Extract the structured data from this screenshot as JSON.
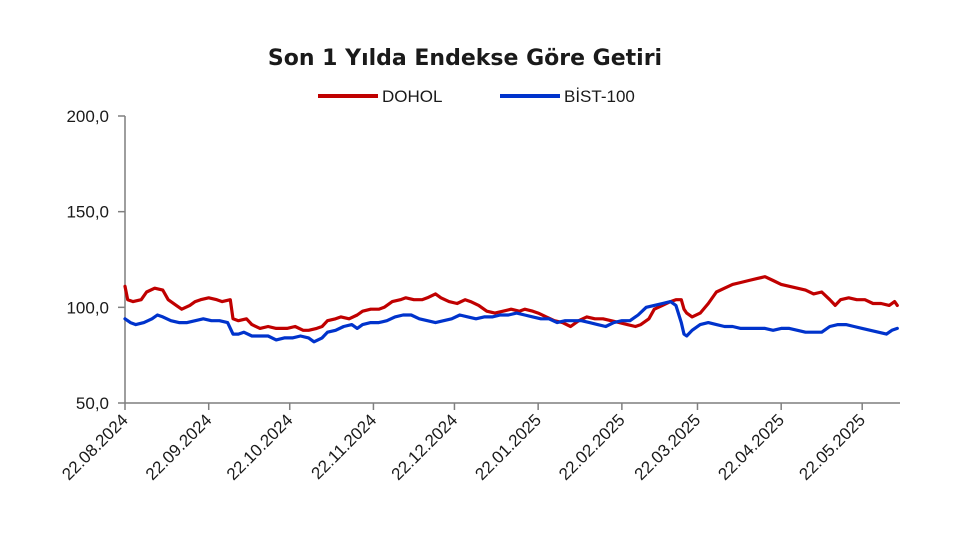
{
  "chart_data": {
    "type": "line",
    "title": "Son 1 Yılda Endekse Göre Getiri",
    "xlabel": "",
    "ylabel": "",
    "ylim": [
      50,
      200
    ],
    "y_ticks": [
      "200,0",
      "150,0",
      "100,0",
      "50,0"
    ],
    "y_tick_values": [
      200,
      150,
      100,
      50
    ],
    "x_ticks": [
      "22.08.2024",
      "22.09.2024",
      "22.10.2024",
      "22.11.2024",
      "22.12.2024",
      "22.01.2025",
      "22.02.2025",
      "22.03.2025",
      "22.04.2025",
      "22.05.2025"
    ],
    "x_tick_days": [
      0,
      31,
      61,
      92,
      122,
      153,
      184,
      212,
      243,
      273
    ],
    "x_end_days": 287,
    "grid": false,
    "legend_position": "top",
    "series": [
      {
        "name": "DOHOL",
        "color": "#c00000",
        "points": [
          [
            0,
            111
          ],
          [
            1,
            104
          ],
          [
            3,
            103
          ],
          [
            6,
            104
          ],
          [
            8,
            108
          ],
          [
            11,
            110
          ],
          [
            14,
            109
          ],
          [
            16,
            104
          ],
          [
            19,
            101
          ],
          [
            21,
            99
          ],
          [
            24,
            101
          ],
          [
            26,
            103
          ],
          [
            28,
            104
          ],
          [
            31,
            105
          ],
          [
            34,
            104
          ],
          [
            36,
            103
          ],
          [
            39,
            104
          ],
          [
            40,
            94
          ],
          [
            42,
            93
          ],
          [
            45,
            94
          ],
          [
            47,
            91
          ],
          [
            50,
            89
          ],
          [
            53,
            90
          ],
          [
            56,
            89
          ],
          [
            60,
            89
          ],
          [
            63,
            90
          ],
          [
            66,
            88
          ],
          [
            68,
            88
          ],
          [
            71,
            89
          ],
          [
            73,
            90
          ],
          [
            75,
            93
          ],
          [
            78,
            94
          ],
          [
            80,
            95
          ],
          [
            83,
            94
          ],
          [
            86,
            96
          ],
          [
            88,
            98
          ],
          [
            91,
            99
          ],
          [
            94,
            99
          ],
          [
            96,
            100
          ],
          [
            99,
            103
          ],
          [
            102,
            104
          ],
          [
            104,
            105
          ],
          [
            107,
            104
          ],
          [
            110,
            104
          ],
          [
            112,
            105
          ],
          [
            115,
            107
          ],
          [
            117,
            105
          ],
          [
            120,
            103
          ],
          [
            123,
            102
          ],
          [
            126,
            104
          ],
          [
            128,
            103
          ],
          [
            131,
            101
          ],
          [
            134,
            98
          ],
          [
            137,
            97
          ],
          [
            140,
            98
          ],
          [
            143,
            99
          ],
          [
            146,
            98
          ],
          [
            148,
            99
          ],
          [
            151,
            98
          ],
          [
            153,
            97
          ],
          [
            156,
            95
          ],
          [
            159,
            93
          ],
          [
            162,
            92
          ],
          [
            165,
            90
          ],
          [
            168,
            93
          ],
          [
            171,
            95
          ],
          [
            174,
            94
          ],
          [
            177,
            94
          ],
          [
            180,
            93
          ],
          [
            183,
            92
          ],
          [
            186,
            91
          ],
          [
            189,
            90
          ],
          [
            191,
            91
          ],
          [
            194,
            94
          ],
          [
            196,
            99
          ],
          [
            199,
            101
          ],
          [
            202,
            103
          ],
          [
            204,
            104
          ],
          [
            206,
            104
          ],
          [
            207,
            99
          ],
          [
            208,
            97
          ],
          [
            210,
            95
          ],
          [
            213,
            97
          ],
          [
            216,
            102
          ],
          [
            219,
            108
          ],
          [
            222,
            110
          ],
          [
            225,
            112
          ],
          [
            228,
            113
          ],
          [
            231,
            114
          ],
          [
            234,
            115
          ],
          [
            237,
            116
          ],
          [
            240,
            114
          ],
          [
            243,
            112
          ],
          [
            246,
            111
          ],
          [
            249,
            110
          ],
          [
            252,
            109
          ],
          [
            255,
            107
          ],
          [
            258,
            108
          ],
          [
            261,
            104
          ],
          [
            263,
            101
          ],
          [
            265,
            104
          ],
          [
            268,
            105
          ],
          [
            271,
            104
          ],
          [
            274,
            104
          ],
          [
            277,
            102
          ],
          [
            280,
            102
          ],
          [
            283,
            101
          ],
          [
            285,
            103
          ],
          [
            286,
            101
          ]
        ]
      },
      {
        "name": "BİST-100",
        "color": "#0033cc",
        "points": [
          [
            0,
            94
          ],
          [
            2,
            92
          ],
          [
            4,
            91
          ],
          [
            7,
            92
          ],
          [
            10,
            94
          ],
          [
            12,
            96
          ],
          [
            14,
            95
          ],
          [
            17,
            93
          ],
          [
            20,
            92
          ],
          [
            23,
            92
          ],
          [
            26,
            93
          ],
          [
            29,
            94
          ],
          [
            32,
            93
          ],
          [
            35,
            93
          ],
          [
            38,
            92
          ],
          [
            40,
            86
          ],
          [
            42,
            86
          ],
          [
            44,
            87
          ],
          [
            47,
            85
          ],
          [
            50,
            85
          ],
          [
            53,
            85
          ],
          [
            56,
            83
          ],
          [
            59,
            84
          ],
          [
            62,
            84
          ],
          [
            65,
            85
          ],
          [
            68,
            84
          ],
          [
            70,
            82
          ],
          [
            73,
            84
          ],
          [
            75,
            87
          ],
          [
            78,
            88
          ],
          [
            81,
            90
          ],
          [
            84,
            91
          ],
          [
            86,
            89
          ],
          [
            88,
            91
          ],
          [
            91,
            92
          ],
          [
            94,
            92
          ],
          [
            97,
            93
          ],
          [
            100,
            95
          ],
          [
            103,
            96
          ],
          [
            106,
            96
          ],
          [
            109,
            94
          ],
          [
            112,
            93
          ],
          [
            115,
            92
          ],
          [
            118,
            93
          ],
          [
            121,
            94
          ],
          [
            124,
            96
          ],
          [
            127,
            95
          ],
          [
            130,
            94
          ],
          [
            133,
            95
          ],
          [
            136,
            95
          ],
          [
            139,
            96
          ],
          [
            142,
            96
          ],
          [
            145,
            97
          ],
          [
            148,
            96
          ],
          [
            151,
            95
          ],
          [
            154,
            94
          ],
          [
            157,
            94
          ],
          [
            160,
            92
          ],
          [
            163,
            93
          ],
          [
            166,
            93
          ],
          [
            169,
            93
          ],
          [
            172,
            92
          ],
          [
            175,
            91
          ],
          [
            178,
            90
          ],
          [
            181,
            92
          ],
          [
            184,
            93
          ],
          [
            187,
            93
          ],
          [
            190,
            96
          ],
          [
            193,
            100
          ],
          [
            196,
            101
          ],
          [
            199,
            102
          ],
          [
            202,
            103
          ],
          [
            204,
            101
          ],
          [
            206,
            92
          ],
          [
            207,
            86
          ],
          [
            208,
            85
          ],
          [
            210,
            88
          ],
          [
            213,
            91
          ],
          [
            216,
            92
          ],
          [
            219,
            91
          ],
          [
            222,
            90
          ],
          [
            225,
            90
          ],
          [
            228,
            89
          ],
          [
            231,
            89
          ],
          [
            234,
            89
          ],
          [
            237,
            89
          ],
          [
            240,
            88
          ],
          [
            243,
            89
          ],
          [
            246,
            89
          ],
          [
            249,
            88
          ],
          [
            252,
            87
          ],
          [
            255,
            87
          ],
          [
            258,
            87
          ],
          [
            261,
            90
          ],
          [
            264,
            91
          ],
          [
            267,
            91
          ],
          [
            270,
            90
          ],
          [
            273,
            89
          ],
          [
            276,
            88
          ],
          [
            279,
            87
          ],
          [
            282,
            86
          ],
          [
            284,
            88
          ],
          [
            286,
            89
          ]
        ]
      }
    ]
  }
}
